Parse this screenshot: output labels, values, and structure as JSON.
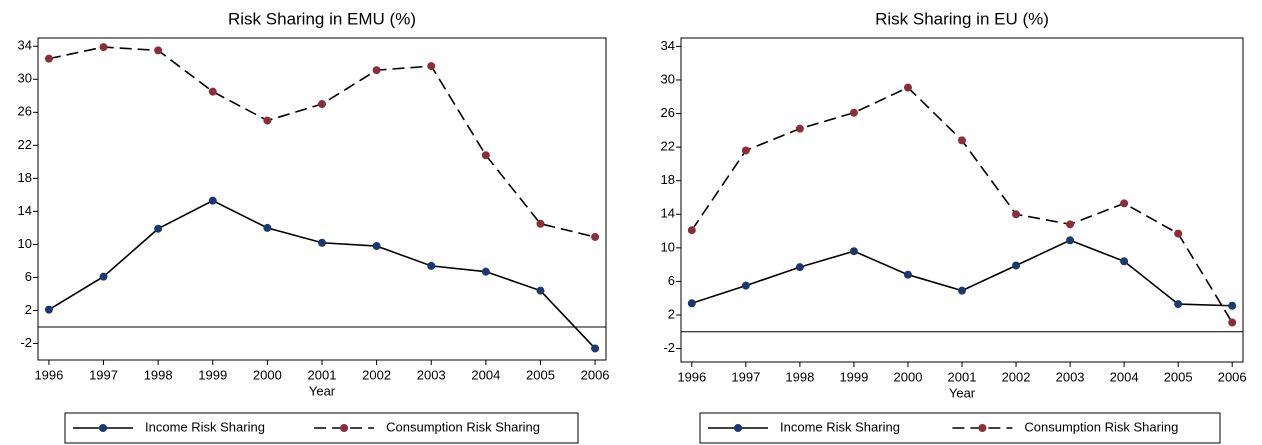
{
  "chart_data": [
    {
      "type": "line",
      "title": "Risk Sharing in EMU (%)",
      "x_label": "Year",
      "x": [
        1996,
        1997,
        1998,
        1999,
        2000,
        2001,
        2002,
        2003,
        2004,
        2005,
        2006
      ],
      "xlim": [
        1995.8,
        2006.2
      ],
      "xticks": [
        1996,
        1997,
        1998,
        1999,
        2000,
        2001,
        2002,
        2003,
        2004,
        2005,
        2006
      ],
      "ylim": [
        -4,
        35
      ],
      "yticks": [
        -2,
        2,
        6,
        10,
        14,
        18,
        22,
        26,
        30,
        34
      ],
      "reference_line": 0,
      "legend": "bottom",
      "series": [
        {
          "name": "Income Risk Sharing",
          "color": "#1a3a6e",
          "line_style": "solid",
          "values": [
            2.1,
            6.1,
            11.9,
            15.3,
            12.0,
            10.2,
            9.8,
            7.4,
            6.7,
            4.4,
            -2.6
          ]
        },
        {
          "name": "Consumption Risk Sharing",
          "color": "#8b2e3a",
          "line_style": "dashed",
          "values": [
            32.5,
            33.9,
            33.5,
            28.5,
            25.0,
            27.0,
            31.1,
            31.6,
            20.8,
            12.5,
            10.9
          ]
        }
      ]
    },
    {
      "type": "line",
      "title": "Risk Sharing in EU (%)",
      "x_label": "Year",
      "x": [
        1996,
        1997,
        1998,
        1999,
        2000,
        2001,
        2002,
        2003,
        2004,
        2005,
        2006
      ],
      "xlim": [
        1995.8,
        2006.2
      ],
      "xticks": [
        1996,
        1997,
        1998,
        1999,
        2000,
        2001,
        2002,
        2003,
        2004,
        2005,
        2006
      ],
      "ylim": [
        -3.6,
        35
      ],
      "yticks": [
        -2,
        2,
        6,
        10,
        14,
        18,
        22,
        26,
        30,
        34
      ],
      "reference_line": 0,
      "legend": "bottom",
      "series": [
        {
          "name": "Income Risk Sharing",
          "color": "#1a3a6e",
          "line_style": "solid",
          "values": [
            3.4,
            5.5,
            7.7,
            9.6,
            6.8,
            4.9,
            7.9,
            10.9,
            8.4,
            3.3,
            3.1
          ]
        },
        {
          "name": "Consumption Risk Sharing",
          "color": "#8b2e3a",
          "line_style": "dashed",
          "values": [
            12.1,
            21.6,
            24.2,
            26.1,
            29.1,
            22.8,
            14.0,
            12.8,
            15.3,
            11.7,
            1.1
          ]
        }
      ]
    }
  ]
}
